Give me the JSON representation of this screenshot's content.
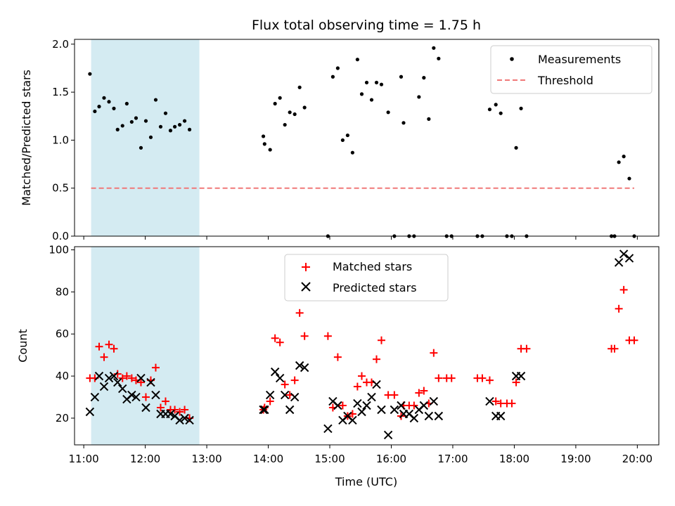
{
  "chart_data": {
    "type": "scatter",
    "title": "Flux total observing time = 1.75 h",
    "colors": {
      "measurement": "#000000",
      "threshold": "#f07878",
      "matched": "#ff0000",
      "predicted": "#000000",
      "shade": "#add8e6"
    },
    "shaded_interval": {
      "x_start": 11.12,
      "x_end": 12.88
    },
    "xlabel": "Time (UTC)",
    "xlim": [
      10.85,
      20.35
    ],
    "x_ticks": [
      11,
      12,
      13,
      14,
      15,
      16,
      17,
      18,
      19,
      20
    ],
    "x_tick_labels": [
      "11:00",
      "12:00",
      "13:00",
      "14:00",
      "15:00",
      "16:00",
      "17:00",
      "18:00",
      "19:00",
      "20:00"
    ],
    "top": {
      "ylabel": "Matched/Predicted stars",
      "ylim": [
        0,
        2.05
      ],
      "y_ticks": [
        0,
        0.5,
        1,
        1.5,
        2
      ],
      "y_tick_labels": [
        "0.0",
        "0.5",
        "1.0",
        "1.5",
        "2.0"
      ],
      "legend": [
        "Measurements",
        "Threshold"
      ],
      "legend_loc": "upper right",
      "threshold": {
        "value": 0.5,
        "x_start": 11.12,
        "x_end": 19.95
      },
      "measurements": [
        [
          11.1,
          1.69
        ],
        [
          11.18,
          1.3
        ],
        [
          11.25,
          1.35
        ],
        [
          11.33,
          1.44
        ],
        [
          11.41,
          1.4
        ],
        [
          11.49,
          1.33
        ],
        [
          11.55,
          1.11
        ],
        [
          11.63,
          1.15
        ],
        [
          11.7,
          1.38
        ],
        [
          11.78,
          1.19
        ],
        [
          11.85,
          1.23
        ],
        [
          11.93,
          0.92
        ],
        [
          12.01,
          1.2
        ],
        [
          12.09,
          1.03
        ],
        [
          12.17,
          1.42
        ],
        [
          12.25,
          1.14
        ],
        [
          12.33,
          1.28
        ],
        [
          12.41,
          1.1
        ],
        [
          12.48,
          1.14
        ],
        [
          12.56,
          1.16
        ],
        [
          12.64,
          1.2
        ],
        [
          12.72,
          1.11
        ],
        [
          13.92,
          1.04
        ],
        [
          13.94,
          0.96
        ],
        [
          14.03,
          0.9
        ],
        [
          14.11,
          1.38
        ],
        [
          14.19,
          1.44
        ],
        [
          14.27,
          1.16
        ],
        [
          14.35,
          1.29
        ],
        [
          14.43,
          1.27
        ],
        [
          14.51,
          1.55
        ],
        [
          14.59,
          1.34
        ],
        [
          14.97,
          0.0
        ],
        [
          15.05,
          1.66
        ],
        [
          15.13,
          1.75
        ],
        [
          15.21,
          1.0
        ],
        [
          15.29,
          1.05
        ],
        [
          15.37,
          0.87
        ],
        [
          15.45,
          1.84
        ],
        [
          15.52,
          1.48
        ],
        [
          15.6,
          1.6
        ],
        [
          15.68,
          1.42
        ],
        [
          15.76,
          1.6
        ],
        [
          15.84,
          1.58
        ],
        [
          15.95,
          1.29
        ],
        [
          16.05,
          0.0
        ],
        [
          16.16,
          1.66
        ],
        [
          16.2,
          1.18
        ],
        [
          16.29,
          0.0
        ],
        [
          16.37,
          0.0
        ],
        [
          16.45,
          1.45
        ],
        [
          16.53,
          1.65
        ],
        [
          16.61,
          1.22
        ],
        [
          16.69,
          1.96
        ],
        [
          16.77,
          1.85
        ],
        [
          16.9,
          0.0
        ],
        [
          16.98,
          0.0
        ],
        [
          17.4,
          0.0
        ],
        [
          17.48,
          0.0
        ],
        [
          17.6,
          1.32
        ],
        [
          17.7,
          1.37
        ],
        [
          17.78,
          1.28
        ],
        [
          17.88,
          0.0
        ],
        [
          17.96,
          0.0
        ],
        [
          18.03,
          0.92
        ],
        [
          18.11,
          1.33
        ],
        [
          18.2,
          0.0
        ],
        [
          19.58,
          0.0
        ],
        [
          19.63,
          0.0
        ],
        [
          19.7,
          0.77
        ],
        [
          19.78,
          0.83
        ],
        [
          19.87,
          0.6
        ],
        [
          19.95,
          0.0
        ]
      ]
    },
    "bottom": {
      "ylabel": "Count",
      "ylim": [
        7.3,
        101.5
      ],
      "y_ticks": [
        20,
        40,
        60,
        80,
        100
      ],
      "y_tick_labels": [
        "20",
        "40",
        "60",
        "80",
        "100"
      ],
      "legend": [
        "Matched stars",
        "Predicted stars"
      ],
      "legend_loc": "upper center",
      "series": [
        {
          "name": "Matched stars",
          "marker": "plus",
          "points": [
            [
              11.1,
              39
            ],
            [
              11.18,
              39
            ],
            [
              11.25,
              54
            ],
            [
              11.33,
              49
            ],
            [
              11.41,
              55
            ],
            [
              11.49,
              53
            ],
            [
              11.55,
              41
            ],
            [
              11.63,
              39
            ],
            [
              11.7,
              40
            ],
            [
              11.78,
              39
            ],
            [
              11.85,
              38
            ],
            [
              11.93,
              37
            ],
            [
              12.01,
              30
            ],
            [
              12.09,
              38
            ],
            [
              12.17,
              44
            ],
            [
              12.25,
              25
            ],
            [
              12.33,
              28
            ],
            [
              12.41,
              24
            ],
            [
              12.48,
              24
            ],
            [
              12.56,
              23
            ],
            [
              12.64,
              24
            ],
            [
              12.72,
              20
            ],
            [
              13.92,
              24
            ],
            [
              13.94,
              25
            ],
            [
              14.03,
              28
            ],
            [
              14.11,
              58
            ],
            [
              14.19,
              56
            ],
            [
              14.27,
              36
            ],
            [
              14.35,
              31
            ],
            [
              14.43,
              38
            ],
            [
              14.51,
              70
            ],
            [
              14.59,
              59
            ],
            [
              14.97,
              59
            ],
            [
              15.05,
              25
            ],
            [
              15.13,
              49
            ],
            [
              15.21,
              26
            ],
            [
              15.29,
              21
            ],
            [
              15.37,
              22
            ],
            [
              15.45,
              35
            ],
            [
              15.52,
              40
            ],
            [
              15.6,
              37
            ],
            [
              15.68,
              37
            ],
            [
              15.76,
              48
            ],
            [
              15.84,
              57
            ],
            [
              15.95,
              31
            ],
            [
              16.05,
              31
            ],
            [
              16.16,
              21
            ],
            [
              16.2,
              26
            ],
            [
              16.29,
              26
            ],
            [
              16.37,
              26
            ],
            [
              16.45,
              32
            ],
            [
              16.53,
              33
            ],
            [
              16.61,
              27
            ],
            [
              16.69,
              51
            ],
            [
              16.77,
              39
            ],
            [
              16.9,
              39
            ],
            [
              16.98,
              39
            ],
            [
              17.4,
              39
            ],
            [
              17.48,
              39
            ],
            [
              17.6,
              38
            ],
            [
              17.7,
              28
            ],
            [
              17.78,
              27
            ],
            [
              17.88,
              27
            ],
            [
              17.96,
              27
            ],
            [
              18.03,
              37
            ],
            [
              18.11,
              53
            ],
            [
              18.2,
              53
            ],
            [
              19.58,
              53
            ],
            [
              19.63,
              53
            ],
            [
              19.7,
              72
            ],
            [
              19.78,
              81
            ],
            [
              19.87,
              57
            ],
            [
              19.95,
              57
            ]
          ]
        },
        {
          "name": "Predicted stars",
          "marker": "x",
          "points": [
            [
              11.1,
              23
            ],
            [
              11.18,
              30
            ],
            [
              11.25,
              40
            ],
            [
              11.33,
              35
            ],
            [
              11.41,
              39
            ],
            [
              11.49,
              40
            ],
            [
              11.55,
              37
            ],
            [
              11.63,
              34
            ],
            [
              11.7,
              29
            ],
            [
              11.78,
              31
            ],
            [
              11.85,
              30
            ],
            [
              11.93,
              39
            ],
            [
              12.01,
              25
            ],
            [
              12.09,
              37
            ],
            [
              12.17,
              31
            ],
            [
              12.25,
              22
            ],
            [
              12.33,
              22
            ],
            [
              12.41,
              22
            ],
            [
              12.48,
              21
            ],
            [
              12.56,
              19
            ],
            [
              12.64,
              20
            ],
            [
              12.72,
              19
            ],
            [
              13.92,
              24
            ],
            [
              13.94,
              24
            ],
            [
              14.03,
              31
            ],
            [
              14.11,
              42
            ],
            [
              14.19,
              39
            ],
            [
              14.27,
              31
            ],
            [
              14.35,
              24
            ],
            [
              14.43,
              30
            ],
            [
              14.51,
              45
            ],
            [
              14.59,
              44
            ],
            [
              14.97,
              15
            ],
            [
              15.05,
              28
            ],
            [
              15.13,
              26
            ],
            [
              15.21,
              19
            ],
            [
              15.29,
              21
            ],
            [
              15.37,
              19
            ],
            [
              15.45,
              27
            ],
            [
              15.52,
              23
            ],
            [
              15.6,
              26
            ],
            [
              15.68,
              30
            ],
            [
              15.76,
              36
            ],
            [
              15.84,
              24
            ],
            [
              15.95,
              12
            ],
            [
              16.05,
              24
            ],
            [
              16.16,
              26
            ],
            [
              16.2,
              22
            ],
            [
              16.29,
              22
            ],
            [
              16.37,
              20
            ],
            [
              16.45,
              24
            ],
            [
              16.53,
              26
            ],
            [
              16.61,
              21
            ],
            [
              16.69,
              28
            ],
            [
              16.77,
              21
            ],
            [
              17.6,
              28
            ],
            [
              17.7,
              21
            ],
            [
              17.78,
              21
            ],
            [
              18.03,
              40
            ],
            [
              18.11,
              40
            ],
            [
              19.7,
              94
            ],
            [
              19.78,
              98
            ],
            [
              19.87,
              96
            ]
          ]
        }
      ]
    }
  }
}
